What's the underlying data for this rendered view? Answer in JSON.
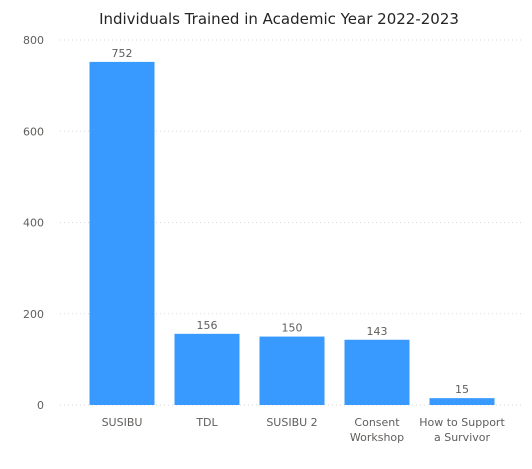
{
  "chart_data": {
    "type": "bar",
    "title": "Individuals Trained in Academic Year 2022-2023",
    "xlabel": "",
    "ylabel": "",
    "categories": [
      [
        "SUSIBU"
      ],
      [
        "TDL"
      ],
      [
        "SUSIBU 2"
      ],
      [
        "Consent",
        "Workshop"
      ],
      [
        "How to Support",
        "a Survivor"
      ]
    ],
    "values": [
      752,
      156,
      150,
      143,
      15
    ],
    "ylim": [
      0,
      800
    ],
    "yticks": [
      0,
      200,
      400,
      600,
      800
    ],
    "grid": true,
    "legend": "none",
    "data_labels": true,
    "bar_color": "#3899ff"
  }
}
